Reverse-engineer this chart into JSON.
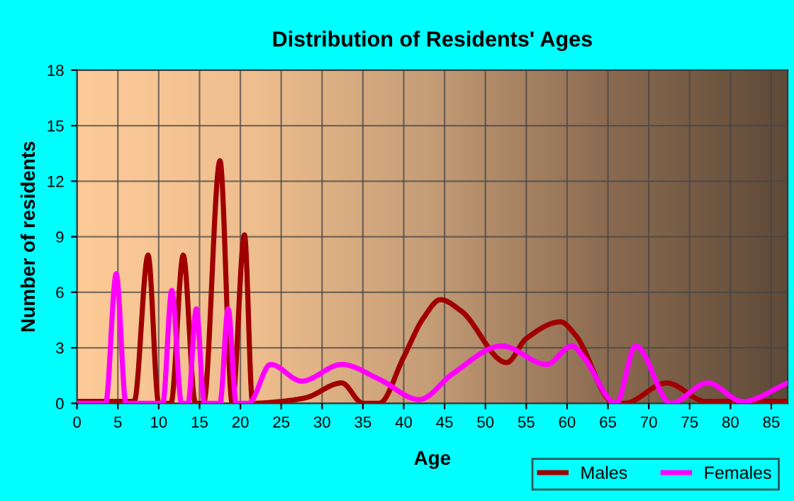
{
  "chart_data": {
    "type": "line",
    "title": "Distribution of Residents' Ages",
    "xlabel": "Age",
    "ylabel": "Number of residents",
    "xlim": [
      0,
      87
    ],
    "xticks": [
      0,
      5,
      10,
      15,
      20,
      25,
      30,
      35,
      40,
      45,
      50,
      55,
      60,
      65,
      70,
      75,
      80,
      85
    ],
    "ylim": [
      0,
      18
    ],
    "yticks": [
      0,
      3,
      6,
      9,
      12,
      15,
      18
    ],
    "grid": true,
    "legend": "bottom right",
    "marker": "none",
    "line_style": "solid",
    "series": [
      {
        "name": "Males",
        "color": "#a00000",
        "x": [
          0,
          7,
          8.7,
          10,
          11.5,
          13,
          14.5,
          15.5,
          17.5,
          19,
          20.5,
          21.5,
          25,
          28,
          32.4,
          35,
          37,
          40,
          42.4,
          44.5,
          47,
          52.6,
          55,
          59.2,
          61,
          65.8,
          67,
          72.2,
          77,
          87
        ],
        "values": [
          0.1,
          0.1,
          8,
          0,
          0,
          8,
          0,
          0,
          13.1,
          0,
          9.1,
          0,
          0.1,
          0.3,
          1.1,
          0,
          0,
          2.5,
          4.6,
          5.6,
          5,
          2.2,
          3.5,
          4.4,
          3.7,
          0,
          0,
          1.1,
          0.1,
          0.1
        ]
      },
      {
        "name": "Females",
        "color": "#ff00ff",
        "x": [
          0,
          3.5,
          4.8,
          6,
          10.5,
          11.6,
          12.8,
          13.6,
          14.6,
          15.6,
          17.5,
          18.5,
          19.5,
          21,
          23.7,
          27.5,
          32.4,
          37,
          41.9,
          46,
          52,
          57.5,
          60.6,
          62,
          66,
          68.4,
          72.7,
          77.2,
          81.5,
          87
        ],
        "values": [
          0,
          0,
          7,
          0,
          0,
          6.1,
          0,
          0,
          5.1,
          0,
          0,
          5.1,
          0,
          0,
          2.1,
          1.2,
          2.1,
          1.3,
          0.2,
          1.6,
          3.1,
          2.1,
          3.1,
          2.5,
          0,
          3.1,
          0,
          1.1,
          0.1,
          1.1
        ]
      }
    ]
  }
}
